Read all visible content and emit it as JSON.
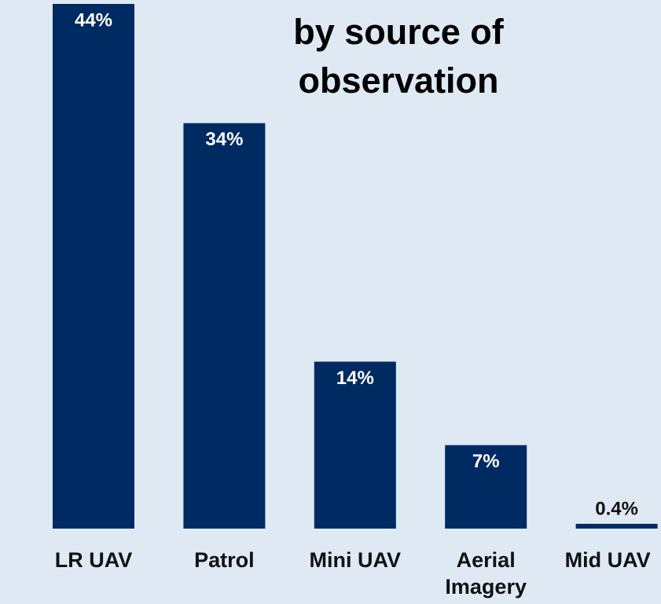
{
  "chart_data": {
    "type": "bar",
    "title": "by source of observation",
    "categories": [
      "LR UAV",
      "Patrol",
      "Mini UAV",
      "Aerial Imagery",
      "Mid UAV"
    ],
    "values": [
      44,
      34,
      14,
      7,
      0.4
    ],
    "value_labels": [
      "44%",
      "34%",
      "14%",
      "7%",
      "0.4%"
    ],
    "color": "#002a62"
  }
}
